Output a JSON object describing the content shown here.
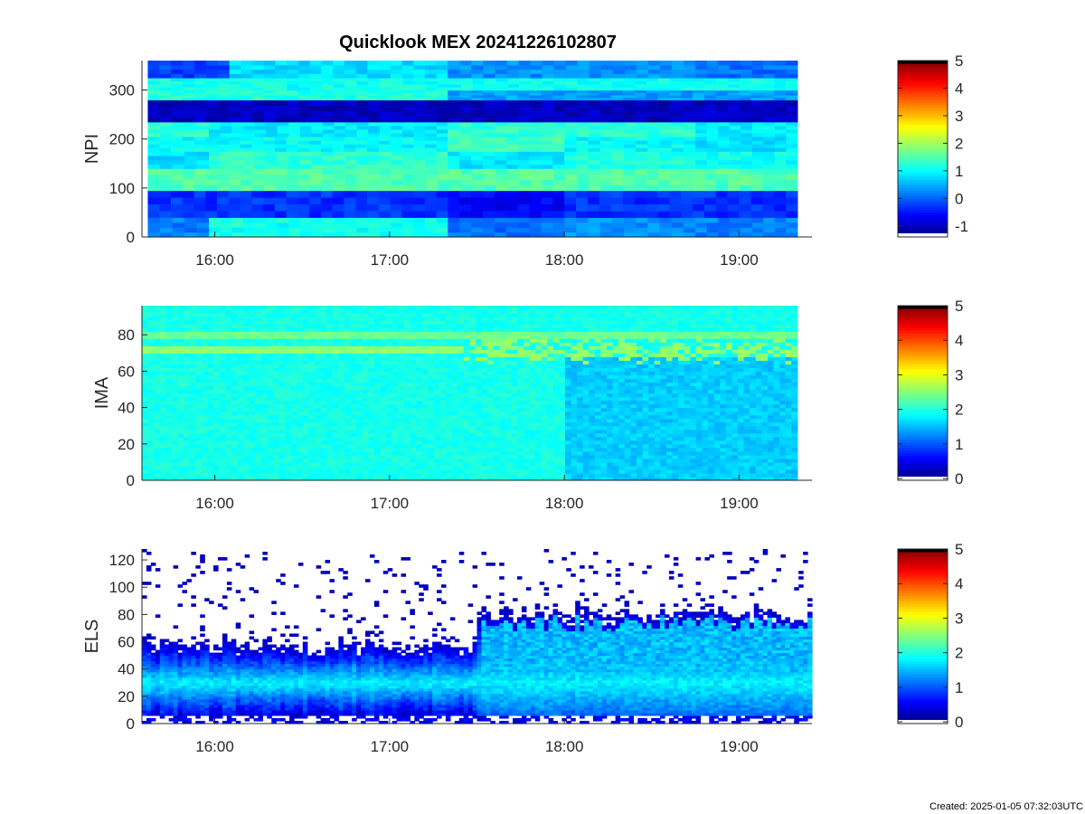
{
  "title": "Quicklook MEX 20241226102807",
  "created": "Created: 2025-01-05 07:32:03UTC",
  "chart_data": [
    {
      "type": "heatmap",
      "name": "npi",
      "ylabel": "NPI",
      "ylim": [
        0,
        360
      ],
      "yticks": [
        0,
        100,
        200,
        300
      ],
      "xlim": [
        "15:35",
        "19:25"
      ],
      "xticks": [
        "16:00",
        "17:00",
        "18:00",
        "19:00"
      ],
      "data_end": "19:20",
      "colorbar": {
        "range": [
          -1.4,
          5
        ],
        "ticks": [
          -1,
          0,
          1,
          2,
          3,
          4,
          5
        ]
      },
      "bands": [
        {
          "y": [
            0,
            40
          ],
          "segments": [
            [
              "15:37",
              "15:58",
              0.2
            ],
            [
              "15:58",
              "17:20",
              1.1
            ],
            [
              "17:20",
              "18:00",
              0.1
            ],
            [
              "18:00",
              "18:45",
              0.3
            ],
            [
              "18:45",
              "19:20",
              0.2
            ]
          ]
        },
        {
          "y": [
            40,
            95
          ],
          "segments": [
            [
              "15:37",
              "17:20",
              -0.3
            ],
            [
              "17:20",
              "18:00",
              -0.6
            ],
            [
              "18:00",
              "19:20",
              -0.3
            ]
          ]
        },
        {
          "y": [
            95,
            140
          ],
          "segments": [
            [
              "15:37",
              "19:20",
              1.5
            ]
          ]
        },
        {
          "y": [
            140,
            175
          ],
          "segments": [
            [
              "15:37",
              "15:58",
              0.8
            ],
            [
              "15:58",
              "17:20",
              1.3
            ],
            [
              "17:20",
              "18:00",
              0.9
            ],
            [
              "18:00",
              "18:45",
              1.2
            ],
            [
              "18:45",
              "19:20",
              1.1
            ]
          ]
        },
        {
          "y": [
            175,
            205
          ],
          "segments": [
            [
              "15:37",
              "17:20",
              1.0
            ],
            [
              "17:20",
              "18:00",
              1.4
            ],
            [
              "18:00",
              "18:45",
              1.0
            ],
            [
              "18:45",
              "19:20",
              0.8
            ]
          ]
        },
        {
          "y": [
            205,
            235
          ],
          "segments": [
            [
              "15:37",
              "15:58",
              1.3
            ],
            [
              "15:58",
              "17:20",
              0.9
            ],
            [
              "17:20",
              "18:45",
              1.3
            ],
            [
              "18:45",
              "19:20",
              0.9
            ]
          ]
        },
        {
          "y": [
            235,
            280
          ],
          "segments": [
            [
              "15:37",
              "19:20",
              -1.0
            ]
          ]
        },
        {
          "y": [
            280,
            300
          ],
          "segments": [
            [
              "15:37",
              "17:20",
              1.2
            ],
            [
              "17:20",
              "19:20",
              0.4
            ]
          ]
        },
        {
          "y": [
            300,
            325
          ],
          "segments": [
            [
              "15:37",
              "19:20",
              1.1
            ]
          ]
        },
        {
          "y": [
            325,
            360
          ],
          "segments": [
            [
              "15:37",
              "16:05",
              -0.2
            ],
            [
              "16:05",
              "17:20",
              0.8
            ],
            [
              "17:20",
              "18:45",
              0.3
            ],
            [
              "18:45",
              "19:20",
              0.1
            ]
          ]
        }
      ]
    },
    {
      "type": "heatmap",
      "name": "ima",
      "ylabel": "IMA",
      "ylim": [
        0,
        96
      ],
      "yticks": [
        0,
        20,
        40,
        60,
        80
      ],
      "xlim": [
        "15:35",
        "19:25"
      ],
      "xticks": [
        "16:00",
        "17:00",
        "18:00",
        "19:00"
      ],
      "data_end": "19:20",
      "colorbar": {
        "range": [
          -0.05,
          5
        ],
        "ticks": [
          0,
          1,
          2,
          3,
          4,
          5
        ]
      },
      "background_level": 1.95,
      "ridges": [
        {
          "y": 72,
          "level": 2.55,
          "until": "17:25"
        },
        {
          "y": 80,
          "level": 2.4,
          "until": "19:20"
        }
      ],
      "depleted_region": {
        "from": "18:00",
        "to": "19:20",
        "level": 1.6
      }
    },
    {
      "type": "heatmap",
      "name": "els",
      "ylabel": "ELS",
      "ylim": [
        0,
        128
      ],
      "yticks": [
        0,
        20,
        40,
        60,
        80,
        100,
        120
      ],
      "xlim": [
        "15:35",
        "19:25"
      ],
      "xticks": [
        "16:00",
        "17:00",
        "18:00",
        "19:00"
      ],
      "data_end": "19:25",
      "colorbar": {
        "range": [
          -0.05,
          5
        ],
        "ticks": [
          0,
          1,
          2,
          3,
          4,
          5
        ]
      },
      "core": {
        "y": 30,
        "level": 1.8
      },
      "upper_edge": {
        "before": 55,
        "after": 78,
        "switch": "17:30"
      }
    }
  ]
}
